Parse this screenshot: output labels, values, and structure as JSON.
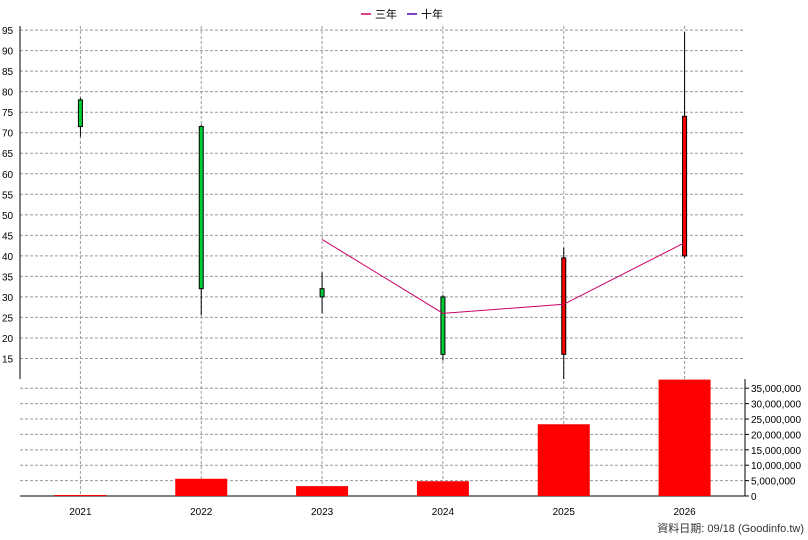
{
  "chart_data": {
    "type": "candlestick",
    "categories": [
      "2021",
      "2022",
      "2023",
      "2024",
      "2025",
      "2026"
    ],
    "legend": [
      {
        "label": "三年",
        "color": "#cc0066"
      },
      {
        "label": "十年",
        "color": "#5500aa"
      }
    ],
    "price_axis": {
      "ylim": [
        10,
        96
      ],
      "ticks": [
        15,
        20,
        25,
        30,
        35,
        40,
        45,
        50,
        55,
        60,
        65,
        70,
        75,
        80,
        85,
        90,
        95
      ]
    },
    "candles": [
      {
        "year": "2021",
        "open": 78,
        "close": 71.5,
        "high": 78.5,
        "low": 69,
        "color": "#00cc33"
      },
      {
        "year": "2022",
        "open": 71.5,
        "close": 32,
        "high": 72,
        "low": 25.5,
        "color": "#00cc33"
      },
      {
        "year": "2023",
        "open": 32,
        "close": 30,
        "high": 36,
        "low": 26,
        "color": "#00cc33"
      },
      {
        "year": "2024",
        "open": 30,
        "close": 16,
        "high": 30.5,
        "low": 14.5,
        "color": "#00cc33"
      },
      {
        "year": "2025",
        "open": 16,
        "close": 39.5,
        "high": 42,
        "low": 10,
        "color": "#ff0000"
      },
      {
        "year": "2026",
        "open": 40,
        "close": 74,
        "high": 94.5,
        "low": 39.5,
        "color": "#ff0000"
      }
    ],
    "three_year_line": [
      {
        "year": "2023",
        "value": 44
      },
      {
        "year": "2024",
        "value": 26
      },
      {
        "year": "2025",
        "value": 28.2
      },
      {
        "year": "2026",
        "value": 43.2
      }
    ],
    "volume_axis": {
      "ylim": [
        0,
        38000000
      ],
      "ticks": [
        "0",
        "5,000,000",
        "10,000,000",
        "15,000,000",
        "20,000,000",
        "25,000,000",
        "30,000,000",
        "35,000,000"
      ],
      "tick_values": [
        0,
        5000000,
        10000000,
        15000000,
        20000000,
        25000000,
        30000000,
        35000000
      ]
    },
    "volumes": [
      {
        "year": "2021",
        "value": 300000
      },
      {
        "year": "2022",
        "value": 5600000
      },
      {
        "year": "2023",
        "value": 3200000
      },
      {
        "year": "2024",
        "value": 4800000
      },
      {
        "year": "2025",
        "value": 23300000
      },
      {
        "year": "2026",
        "value": 37800000
      }
    ],
    "volume_color": "#ff0000",
    "grid": true
  },
  "footer": "資料日期: 09/18  (Goodinfo.tw)"
}
